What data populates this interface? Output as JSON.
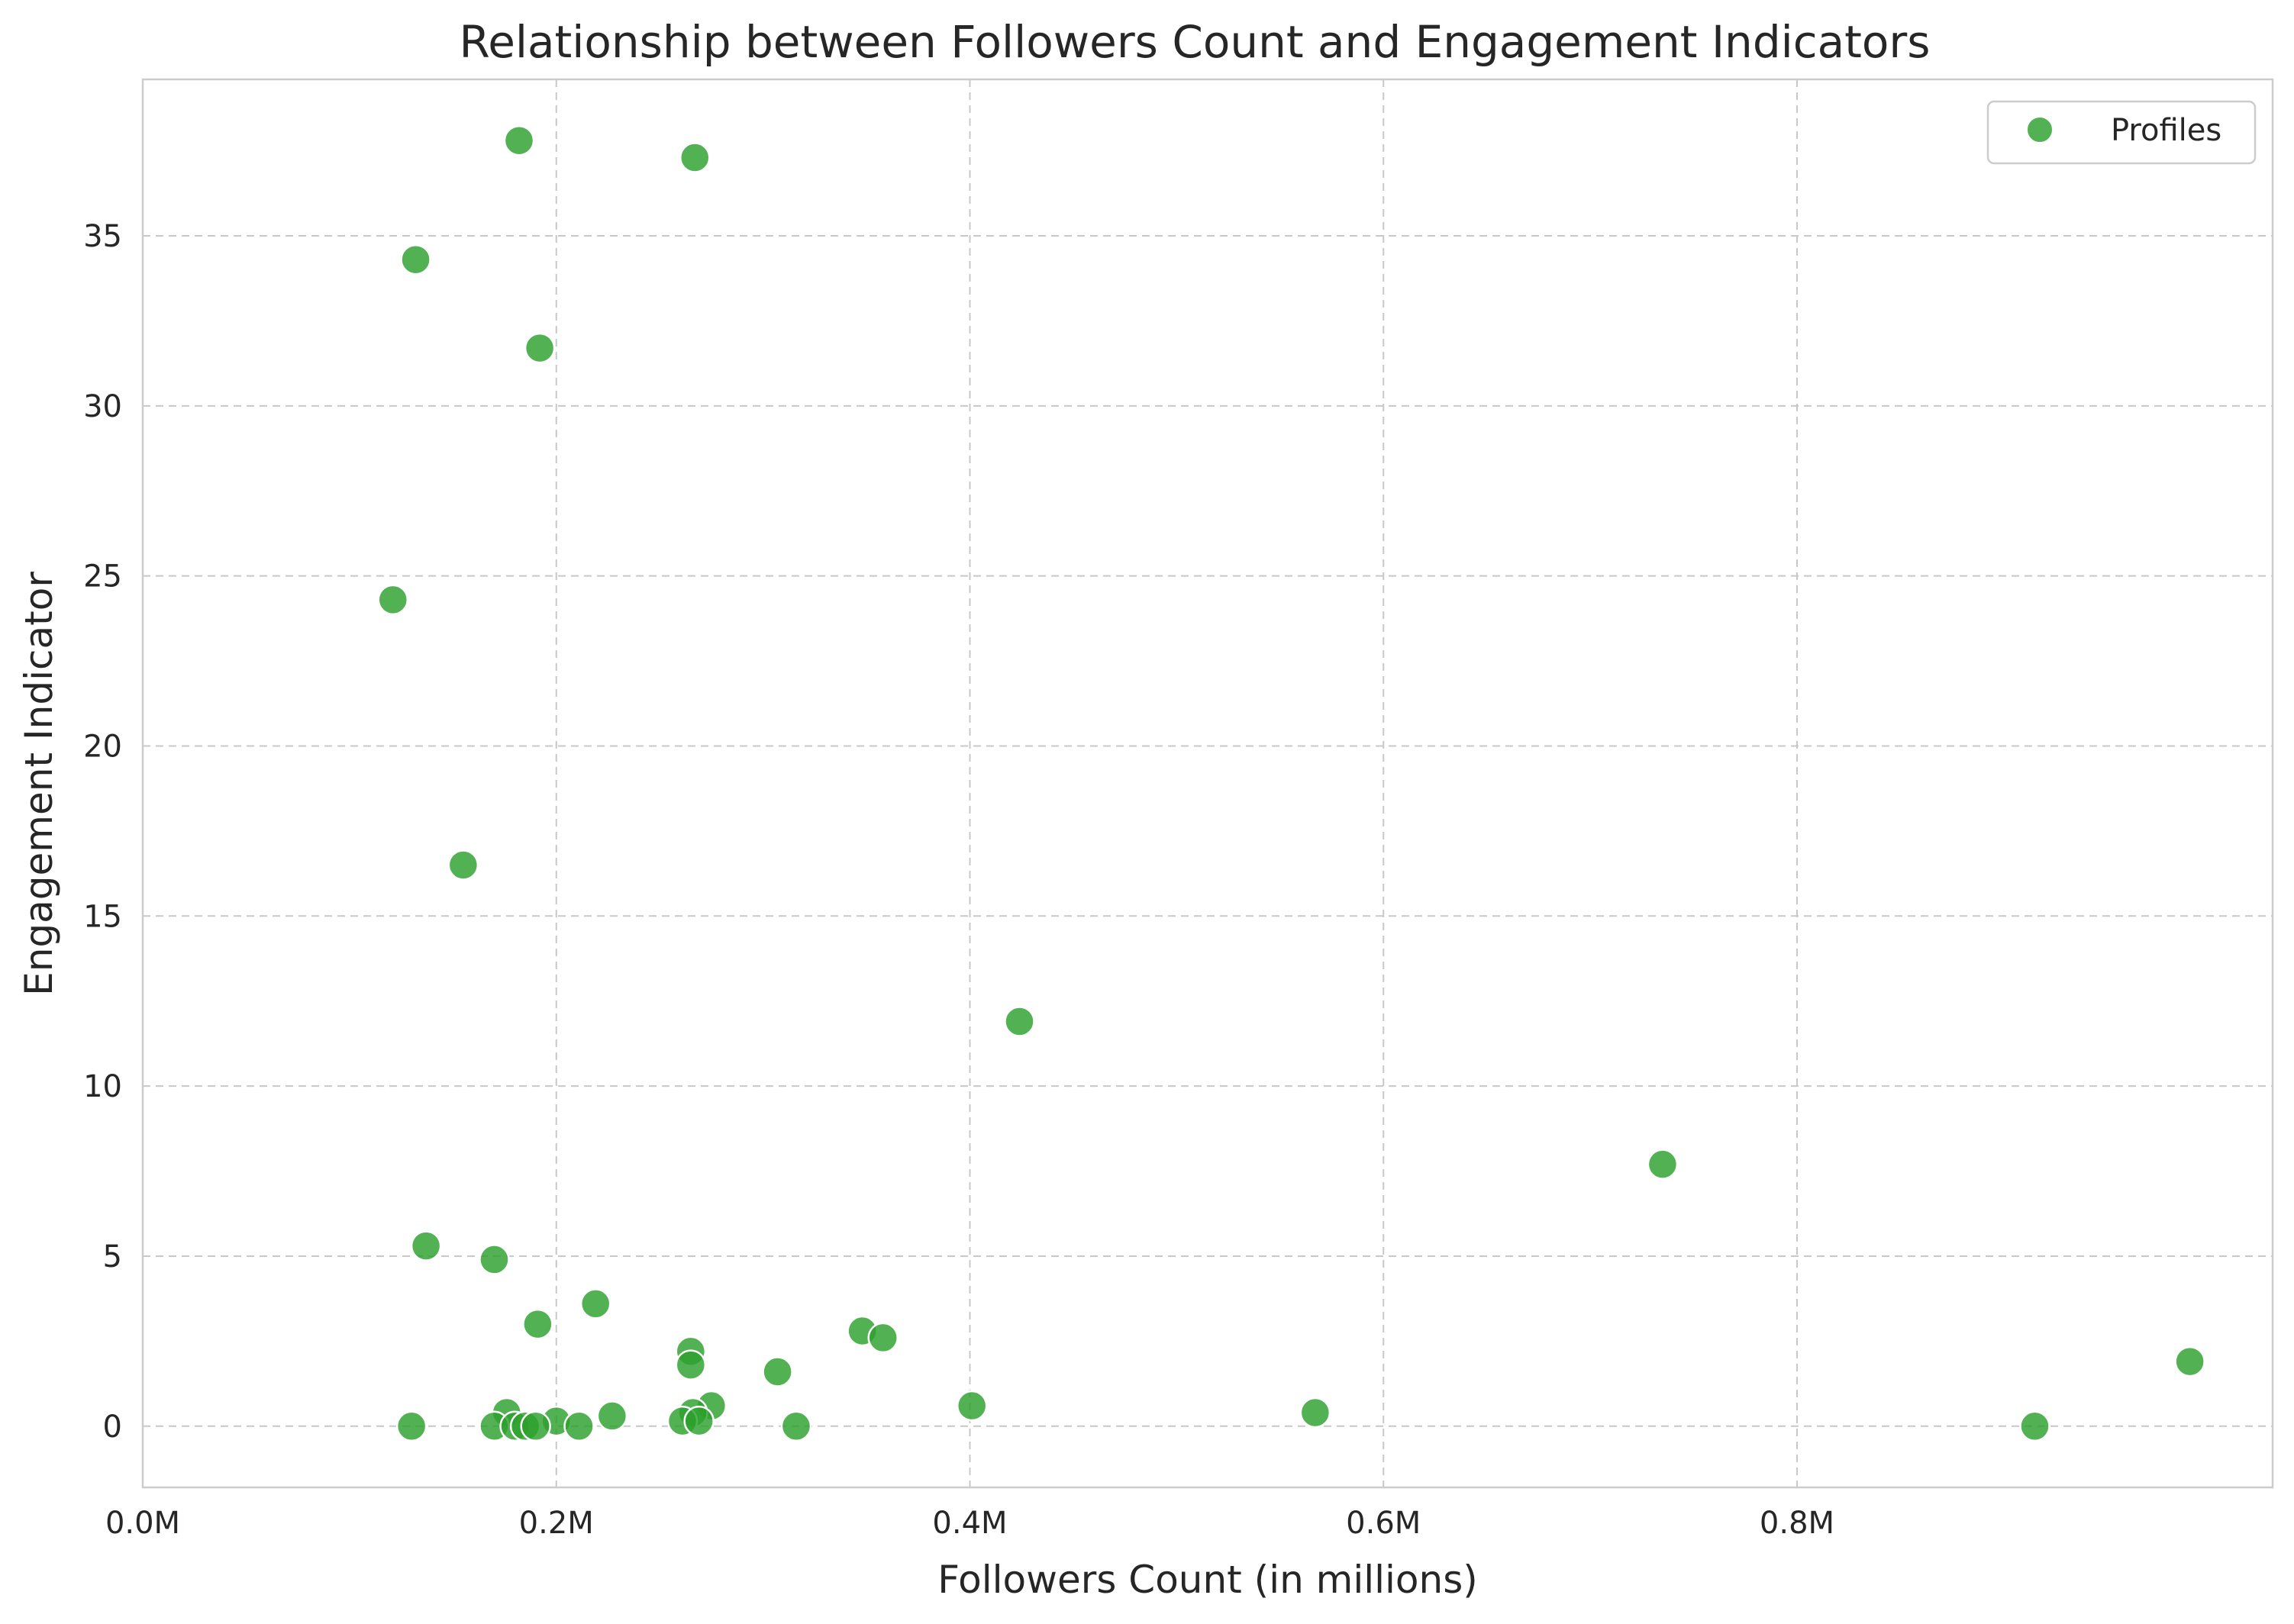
{
  "chart_data": {
    "type": "scatter",
    "title": "Relationship between Followers Count and Engagement Indicators",
    "xlabel": "Followers Count (in millions)",
    "ylabel": "Engagement Indicator",
    "xlim": [
      0.0,
      1.03
    ],
    "ylim": [
      -1.8,
      39.6
    ],
    "xticks": [
      0.0,
      0.2,
      0.4,
      0.6,
      0.8
    ],
    "xtick_labels": [
      "0.0M",
      "0.2M",
      "0.4M",
      "0.6M",
      "0.8M"
    ],
    "yticks": [
      0,
      5,
      10,
      15,
      20,
      25,
      30,
      35
    ],
    "ytick_labels": [
      "0",
      "5",
      "10",
      "15",
      "20",
      "25",
      "30",
      "35"
    ],
    "grid": true,
    "legend_position": "top-right",
    "marker_color": "#2ca02c",
    "series": [
      {
        "name": "Profiles",
        "points": [
          {
            "x": 0.182,
            "y": 37.8
          },
          {
            "x": 0.267,
            "y": 37.3
          },
          {
            "x": 0.132,
            "y": 34.3
          },
          {
            "x": 0.192,
            "y": 31.7
          },
          {
            "x": 0.121,
            "y": 24.3
          },
          {
            "x": 0.155,
            "y": 16.5
          },
          {
            "x": 0.424,
            "y": 11.9
          },
          {
            "x": 0.735,
            "y": 7.7
          },
          {
            "x": 0.137,
            "y": 5.3
          },
          {
            "x": 0.17,
            "y": 4.9
          },
          {
            "x": 0.219,
            "y": 3.6
          },
          {
            "x": 0.191,
            "y": 3.0
          },
          {
            "x": 0.348,
            "y": 2.8
          },
          {
            "x": 0.358,
            "y": 2.6
          },
          {
            "x": 0.265,
            "y": 2.2
          },
          {
            "x": 0.265,
            "y": 1.8
          },
          {
            "x": 0.307,
            "y": 1.6
          },
          {
            "x": 0.99,
            "y": 1.9
          },
          {
            "x": 0.275,
            "y": 0.6
          },
          {
            "x": 0.401,
            "y": 0.6
          },
          {
            "x": 0.567,
            "y": 0.4
          },
          {
            "x": 0.176,
            "y": 0.4
          },
          {
            "x": 0.266,
            "y": 0.4
          },
          {
            "x": 0.227,
            "y": 0.3
          },
          {
            "x": 0.2,
            "y": 0.15
          },
          {
            "x": 0.261,
            "y": 0.15
          },
          {
            "x": 0.269,
            "y": 0.15
          },
          {
            "x": 0.13,
            "y": 0.0
          },
          {
            "x": 0.17,
            "y": 0.0
          },
          {
            "x": 0.18,
            "y": 0.0
          },
          {
            "x": 0.185,
            "y": 0.0
          },
          {
            "x": 0.19,
            "y": 0.0
          },
          {
            "x": 0.211,
            "y": 0.0
          },
          {
            "x": 0.316,
            "y": 0.0
          },
          {
            "x": 0.915,
            "y": 0.0
          }
        ]
      }
    ]
  }
}
